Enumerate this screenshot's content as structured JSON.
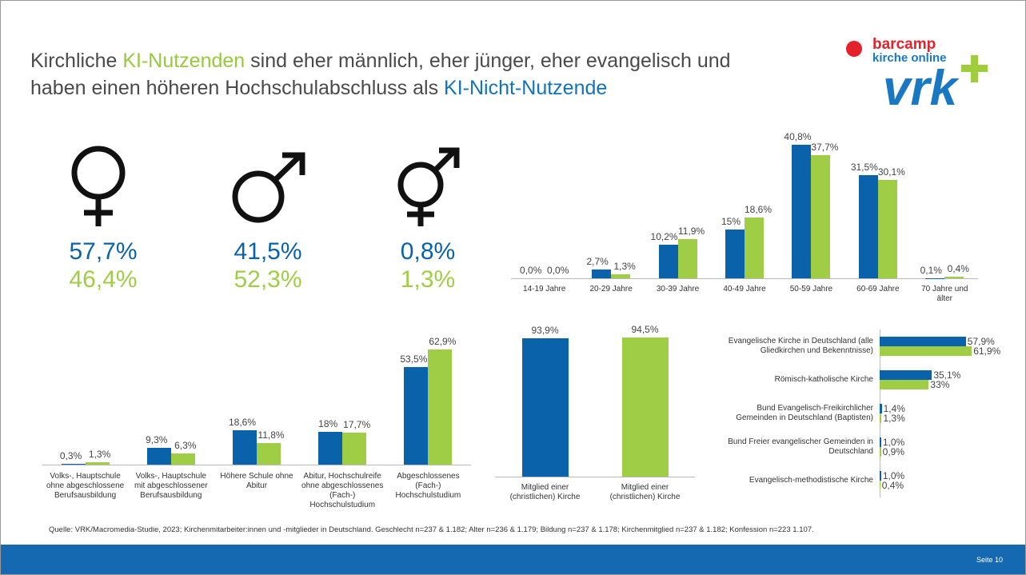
{
  "title": [
    "Kirchliche",
    "KI-Nutzenden",
    "sind eher männlich, eher jünger, eher evangelisch und",
    "haben einen höheren Hochschulabschluss als",
    "KI-Nicht-Nutzende"
  ],
  "logo": {
    "line1": "barcamp",
    "line2": "kirche online",
    "brand": "vrk"
  },
  "gender": {
    "non_users": [
      "57,7%",
      "41,5%",
      "0,8%"
    ],
    "users": [
      "46,4%",
      "52,3%",
      "1,3%"
    ]
  },
  "chart_data": [
    {
      "type": "bar",
      "categories": [
        "14-19 Jahre",
        "20-29 Jahre",
        "30-39 Jahre",
        "40-49 Jahre",
        "50-59 Jahre",
        "60-69 Jahre",
        "70 Jahre und älter"
      ],
      "series": [
        {
          "color": "#0a62ab",
          "values": [
            0.0,
            2.7,
            10.2,
            15,
            40.8,
            31.5,
            0.1
          ],
          "value_labels": [
            "0,0%",
            "2,7%",
            "10,2%",
            "15%",
            "40,8%",
            "31,5%",
            "0,1%"
          ]
        },
        {
          "color": "#a0cd46",
          "values": [
            0.0,
            1.3,
            11.9,
            18.6,
            37.7,
            30.1,
            0.4
          ],
          "value_labels": [
            "0,0%",
            "1,3%",
            "11,9%",
            "18,6%",
            "37,7%",
            "30,1%",
            "0,4%"
          ]
        }
      ],
      "ylim": [
        0,
        42
      ]
    },
    {
      "type": "bar",
      "categories": [
        "Volks-, Hauptschule ohne abgeschlossene Berufsausbildung",
        "Volks-, Hauptschule mit abgeschlossener Berufsausbildung",
        "Höhere Schule ohne Abitur",
        "Abitur, Hochschulreife ohne abgeschlossenes (Fach-) Hochschulstudium",
        "Abgeschlossenes (Fach-) Hochschulstudium"
      ],
      "series": [
        {
          "color": "#0a62ab",
          "values": [
            0.3,
            9.3,
            18.6,
            18,
            53.5
          ],
          "value_labels": [
            "0,3%",
            "9,3%",
            "18,6%",
            "18%",
            "53,5%"
          ]
        },
        {
          "color": "#a0cd46",
          "values": [
            1.3,
            6.3,
            11.8,
            17.7,
            62.9
          ],
          "value_labels": [
            "1,3%",
            "6,3%",
            "11,8%",
            "17,7%",
            "62,9%"
          ]
        }
      ],
      "ylim": [
        0,
        63
      ]
    },
    {
      "type": "bar",
      "categories": [
        "Mitglied einer (christlichen) Kirche",
        "Mitglied einer (christlichen) Kirche"
      ],
      "values": [
        93.9,
        94.5
      ],
      "value_labels": [
        "93,9%",
        "94,5%"
      ],
      "colors": [
        "#0a62ab",
        "#a0cd46"
      ],
      "ylim": [
        0,
        95
      ]
    },
    {
      "type": "hbar",
      "categories": [
        "Evangelische Kirche in Deutschland (alle Gliedkirchen und Bekenntnisse)",
        "Römisch-katholische Kirche",
        "Bund Evangelisch-Freikirchlicher Gemeinden in Deutschland (Baptisten)",
        "Bund Freier evangelischer Gemeinden in Deutschland",
        "Evangelisch-methodistische Kirche"
      ],
      "series": [
        {
          "color": "#0a62ab",
          "values": [
            57.9,
            35.1,
            1.4,
            1.0,
            1.0
          ],
          "value_labels": [
            "57,9%",
            "35,1%",
            "1,4%",
            "1,0%",
            "1,0%"
          ]
        },
        {
          "color": "#a0cd46",
          "values": [
            61.9,
            33,
            1.3,
            0.9,
            0.4
          ],
          "value_labels": [
            "61,9%",
            "33%",
            "1,3%",
            "0,9%",
            "0,4%"
          ]
        }
      ],
      "xlim": [
        0,
        62
      ]
    }
  ],
  "source": "Quelle: VRK/Macromedia-Studie, 2023; Kirchenmitarbeiter:innen und -mitglieder in Deutschland. Geschlecht n=237 & 1.182; Alter n=236 & 1.179; Bildung n=237 & 1.178; Kirchenmitglied n=237 & 1.182; Konfession n=223 1.107.",
  "page_number": "Seite 10"
}
